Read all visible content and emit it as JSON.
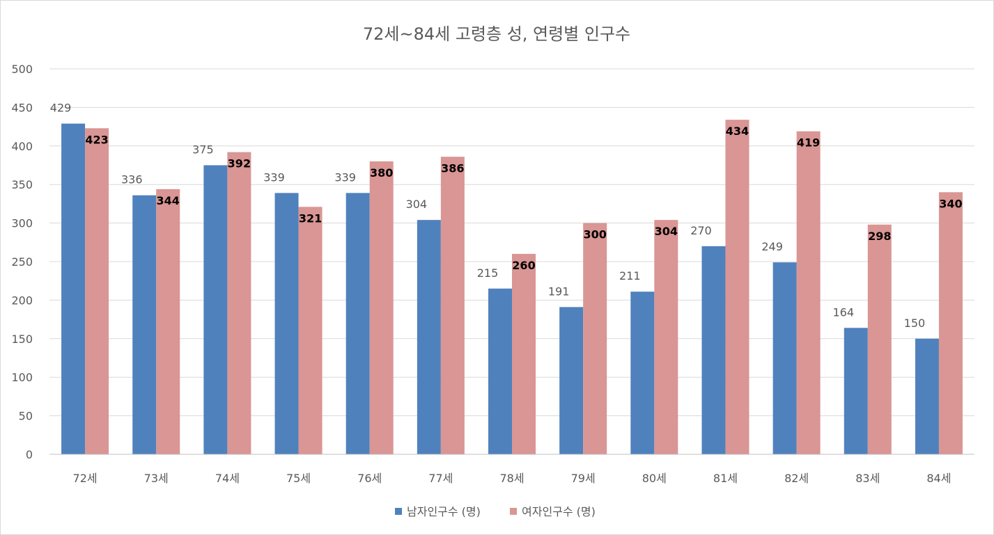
{
  "chart_data": {
    "type": "bar",
    "title": "72세~84세 고령층 성, 연령별 인구수",
    "xlabel": "",
    "ylabel": "",
    "categories": [
      "72세",
      "73세",
      "74세",
      "75세",
      "76세",
      "77세",
      "78세",
      "79세",
      "80세",
      "81세",
      "82세",
      "83세",
      "84세"
    ],
    "series": [
      {
        "name": "남자인구수 (명)",
        "color": "#4f81bd",
        "values": [
          429,
          336,
          375,
          339,
          339,
          304,
          215,
          191,
          211,
          270,
          249,
          164,
          150
        ]
      },
      {
        "name": "여자인구수 (명)",
        "color": "#d99694",
        "values": [
          423,
          344,
          392,
          321,
          380,
          386,
          260,
          300,
          304,
          434,
          419,
          298,
          340
        ]
      }
    ],
    "ylim": [
      0,
      500
    ],
    "yticks": [
      0,
      50,
      100,
      150,
      200,
      250,
      300,
      350,
      400,
      450,
      500
    ],
    "grid": true,
    "legend_position": "bottom"
  }
}
